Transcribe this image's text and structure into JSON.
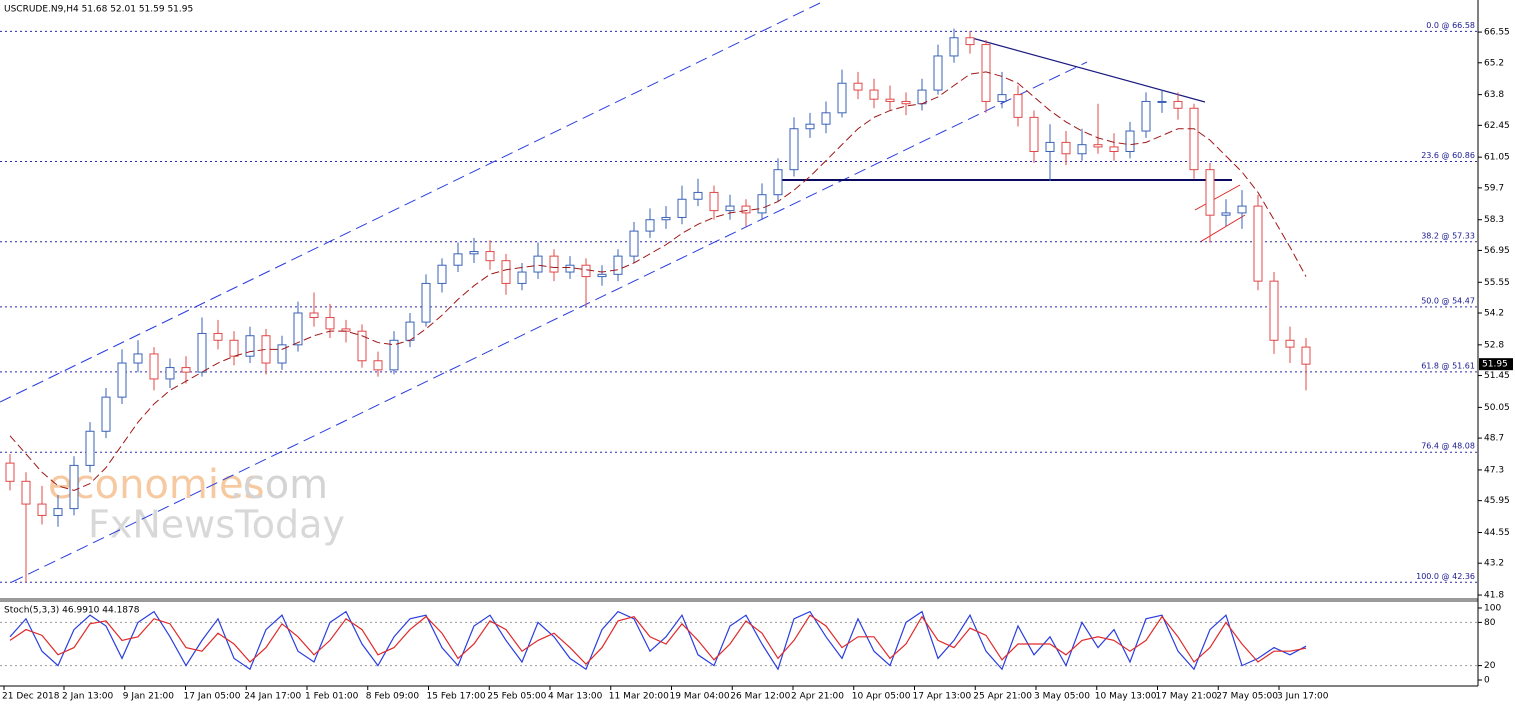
{
  "chart_data": [
    {
      "type": "candlestick",
      "title": "USCRUDE.N9,H4  51.68 52.01 51.59 51.95",
      "watermark": [
        "economies",
        ".com",
        "FxNewsToday"
      ],
      "ylim": [
        41.67,
        67.96
      ],
      "yticks": [
        66.55,
        65.2,
        63.8,
        62.45,
        61.05,
        59.7,
        58.3,
        56.95,
        55.55,
        54.2,
        52.8,
        51.45,
        50.05,
        48.7,
        47.3,
        45.95,
        44.55,
        43.2,
        41.8
      ],
      "last_price": 51.95,
      "up_color": "#3a62b8",
      "down_color": "#e04848",
      "ma_color": "#a01818",
      "fib_levels": [
        {
          "label": "0.0 @ 66.58",
          "value": 66.58
        },
        {
          "label": "23.6 @ 60.86",
          "value": 60.86
        },
        {
          "label": "38.2 @ 57.33",
          "value": 57.33
        },
        {
          "label": "50.0 @ 54.47",
          "value": 54.47
        },
        {
          "label": "61.8 @ 51.61",
          "value": 51.61
        },
        {
          "label": "76.4 @ 48.08",
          "value": 48.08
        },
        {
          "label": "100.0 @ 42.36",
          "value": 42.36
        }
      ],
      "categories": [
        "21 Dec 2018",
        "2 Jan 13:00",
        "9 Jan 21:00",
        "17 Jan 05:00",
        "24 Jan 17:00",
        "1 Feb 01:00",
        "8 Feb 09:00",
        "15 Feb 17:00",
        "25 Feb 05:00",
        "4 Mar 13:00",
        "11 Mar 20:00",
        "19 Mar 04:00",
        "26 Mar 12:00",
        "2 Apr 21:00",
        "10 Apr 05:00",
        "17 Apr 13:00",
        "25 Apr 21:00",
        "3 May 05:00",
        "10 May 13:00",
        "17 May 21:00",
        "27 May 05:00",
        "3 Jun 17:00"
      ],
      "candles": [
        [
          47.6,
          48.0,
          46.4,
          46.8
        ],
        [
          46.8,
          47.2,
          42.36,
          45.8
        ],
        [
          45.8,
          46.6,
          44.9,
          45.3
        ],
        [
          45.3,
          46.2,
          44.8,
          45.6
        ],
        [
          45.6,
          47.9,
          45.3,
          47.5
        ],
        [
          47.5,
          49.4,
          47.2,
          49.0
        ],
        [
          49.0,
          50.9,
          48.7,
          50.5
        ],
        [
          50.5,
          52.6,
          50.2,
          52.0
        ],
        [
          52.0,
          53.0,
          51.6,
          52.4
        ],
        [
          52.4,
          52.7,
          50.8,
          51.3
        ],
        [
          51.3,
          52.2,
          50.9,
          51.8
        ],
        [
          51.8,
          52.3,
          51.1,
          51.6
        ],
        [
          51.6,
          54.0,
          51.4,
          53.3
        ],
        [
          53.3,
          53.9,
          52.6,
          53.0
        ],
        [
          53.0,
          53.4,
          51.9,
          52.3
        ],
        [
          52.3,
          53.6,
          52.0,
          53.2
        ],
        [
          53.2,
          53.5,
          51.5,
          52.0
        ],
        [
          52.0,
          53.2,
          51.7,
          52.8
        ],
        [
          52.8,
          54.7,
          52.5,
          54.2
        ],
        [
          54.2,
          55.1,
          53.6,
          54.0
        ],
        [
          54.0,
          54.6,
          53.1,
          53.5
        ],
        [
          53.5,
          53.9,
          52.9,
          53.4
        ],
        [
          53.4,
          53.7,
          51.8,
          52.1
        ],
        [
          52.1,
          52.5,
          51.4,
          51.7
        ],
        [
          51.7,
          53.4,
          51.5,
          53.0
        ],
        [
          53.0,
          54.2,
          52.7,
          53.8
        ],
        [
          53.8,
          55.9,
          53.6,
          55.5
        ],
        [
          55.5,
          56.6,
          55.1,
          56.3
        ],
        [
          56.3,
          57.3,
          56.0,
          56.8
        ],
        [
          56.8,
          57.5,
          56.4,
          56.9
        ],
        [
          56.9,
          57.4,
          56.1,
          56.5
        ],
        [
          56.5,
          56.8,
          55.0,
          55.5
        ],
        [
          55.5,
          56.4,
          55.2,
          56.0
        ],
        [
          56.0,
          57.3,
          55.7,
          56.7
        ],
        [
          56.7,
          57.0,
          55.6,
          56.0
        ],
        [
          56.0,
          56.7,
          55.7,
          56.3
        ],
        [
          56.3,
          56.6,
          54.5,
          55.8
        ],
        [
          55.8,
          56.3,
          55.4,
          55.9
        ],
        [
          55.9,
          57.0,
          55.6,
          56.7
        ],
        [
          56.7,
          58.2,
          56.4,
          57.8
        ],
        [
          57.8,
          58.8,
          57.5,
          58.3
        ],
        [
          58.3,
          58.9,
          57.9,
          58.4
        ],
        [
          58.4,
          59.8,
          58.1,
          59.2
        ],
        [
          59.2,
          60.1,
          58.9,
          59.5
        ],
        [
          59.5,
          59.8,
          58.3,
          58.7
        ],
        [
          58.7,
          59.4,
          58.3,
          58.9
        ],
        [
          58.9,
          59.2,
          58.0,
          58.6
        ],
        [
          58.6,
          59.9,
          58.3,
          59.4
        ],
        [
          59.4,
          61.0,
          59.1,
          60.5
        ],
        [
          60.5,
          62.8,
          60.2,
          62.3
        ],
        [
          62.3,
          63.0,
          61.9,
          62.5
        ],
        [
          62.5,
          63.5,
          62.1,
          63.0
        ],
        [
          63.0,
          64.9,
          62.8,
          64.3
        ],
        [
          64.3,
          64.8,
          63.6,
          64.0
        ],
        [
          64.0,
          64.5,
          63.2,
          63.6
        ],
        [
          63.6,
          64.2,
          63.1,
          63.5
        ],
        [
          63.5,
          63.9,
          62.9,
          63.4
        ],
        [
          63.4,
          64.5,
          63.1,
          64.0
        ],
        [
          64.0,
          66.0,
          63.8,
          65.5
        ],
        [
          65.5,
          66.7,
          65.2,
          66.3
        ],
        [
          66.3,
          66.6,
          65.6,
          66.0
        ],
        [
          66.0,
          66.2,
          63.0,
          63.5
        ],
        [
          63.5,
          64.8,
          63.2,
          63.8
        ],
        [
          63.8,
          64.2,
          62.4,
          62.8
        ],
        [
          62.8,
          63.1,
          60.8,
          61.3
        ],
        [
          61.3,
          62.5,
          60.0,
          61.7
        ],
        [
          61.7,
          62.2,
          60.7,
          61.2
        ],
        [
          61.2,
          62.3,
          60.9,
          61.6
        ],
        [
          61.6,
          63.4,
          61.2,
          61.5
        ],
        [
          61.5,
          62.1,
          60.9,
          61.3
        ],
        [
          61.3,
          62.6,
          61.0,
          62.2
        ],
        [
          62.2,
          63.9,
          61.9,
          63.5
        ],
        [
          63.5,
          64.0,
          63.0,
          63.5
        ],
        [
          63.5,
          63.9,
          62.7,
          63.2
        ],
        [
          63.2,
          63.4,
          60.1,
          60.5
        ],
        [
          60.5,
          60.8,
          57.3,
          58.5
        ],
        [
          58.5,
          59.2,
          58.0,
          58.6
        ],
        [
          58.6,
          59.6,
          57.9,
          58.9
        ],
        [
          58.9,
          59.4,
          55.2,
          55.6
        ],
        [
          55.6,
          56.0,
          52.4,
          53.0
        ],
        [
          53.0,
          53.6,
          52.0,
          52.7
        ],
        [
          52.7,
          53.1,
          50.8,
          51.95
        ]
      ],
      "ma": [
        48.8,
        48.0,
        47.2,
        46.6,
        46.4,
        46.7,
        47.4,
        48.4,
        49.4,
        50.2,
        50.8,
        51.2,
        51.6,
        52.0,
        52.3,
        52.5,
        52.6,
        52.6,
        52.9,
        53.2,
        53.4,
        53.4,
        53.2,
        52.9,
        52.8,
        53.0,
        53.5,
        54.1,
        54.8,
        55.4,
        55.9,
        56.1,
        56.2,
        56.3,
        56.2,
        56.2,
        56.1,
        56.0,
        56.1,
        56.4,
        56.8,
        57.2,
        57.7,
        58.1,
        58.4,
        58.6,
        58.7,
        58.8,
        59.1,
        59.6,
        60.2,
        60.9,
        61.6,
        62.3,
        62.8,
        63.1,
        63.3,
        63.4,
        63.7,
        64.2,
        64.7,
        64.8,
        64.6,
        64.3,
        63.7,
        63.1,
        62.6,
        62.2,
        61.9,
        61.7,
        61.6,
        61.7,
        62.0,
        62.3,
        62.3,
        61.8,
        61.1,
        60.4,
        59.5,
        58.3,
        57.1,
        55.8
      ]
    },
    {
      "type": "line",
      "title": "Stoch(5,3,3) 46.9910 44.1878",
      "ylim": [
        -8.3,
        108.3
      ],
      "yticks": [
        100,
        80,
        20,
        0
      ],
      "grid_levels": [
        80,
        20
      ],
      "series": [
        {
          "color": "#2a3ee0",
          "values": [
            60,
            85,
            40,
            20,
            70,
            90,
            75,
            30,
            80,
            95,
            60,
            20,
            55,
            85,
            30,
            15,
            70,
            90,
            40,
            25,
            80,
            95,
            50,
            20,
            60,
            85,
            90,
            45,
            20,
            75,
            90,
            55,
            25,
            80,
            60,
            30,
            15,
            70,
            95,
            85,
            40,
            60,
            90,
            35,
            20,
            75,
            90,
            50,
            15,
            85,
            95,
            60,
            30,
            85,
            40,
            20,
            80,
            95,
            30,
            55,
            90,
            40,
            15,
            75,
            35,
            60,
            20,
            80,
            45,
            70,
            25,
            85,
            90,
            40,
            15,
            70,
            90,
            20,
            30,
            45,
            35,
            46.991
          ]
        },
        {
          "color": "#e02a2a",
          "values": [
            55,
            70,
            62,
            35,
            45,
            78,
            82,
            55,
            60,
            85,
            78,
            45,
            40,
            65,
            50,
            25,
            45,
            78,
            60,
            35,
            55,
            85,
            70,
            35,
            45,
            70,
            88,
            65,
            30,
            50,
            82,
            70,
            40,
            55,
            65,
            45,
            22,
            45,
            82,
            88,
            60,
            50,
            78,
            55,
            28,
            50,
            82,
            65,
            30,
            55,
            90,
            75,
            45,
            60,
            60,
            30,
            50,
            88,
            55,
            45,
            72,
            62,
            28,
            50,
            50,
            50,
            35,
            55,
            60,
            55,
            40,
            55,
            88,
            60,
            25,
            45,
            80,
            50,
            25,
            40,
            40,
            44.1878
          ]
        }
      ]
    }
  ]
}
